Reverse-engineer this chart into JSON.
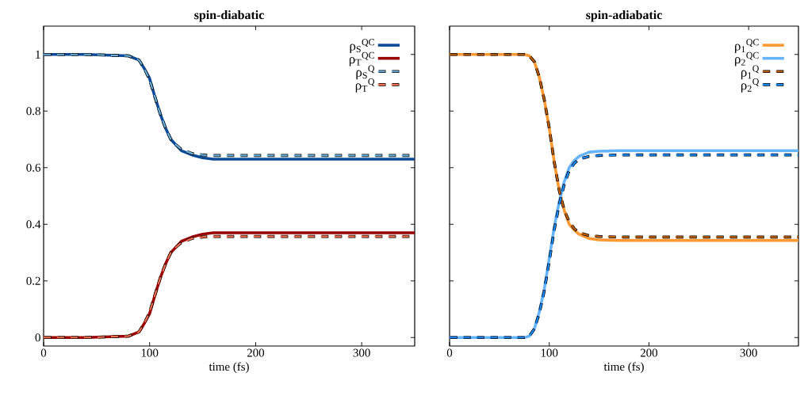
{
  "chart_data": [
    {
      "type": "line",
      "title": "spin-diabatic",
      "xlabel": "time (fs)",
      "xlim": [
        0,
        350
      ],
      "ylim": [
        -0.03,
        1.1
      ],
      "xticks": [
        0,
        100,
        200,
        300
      ],
      "yticks": [
        0,
        0.2,
        0.4,
        0.6,
        0.8,
        1
      ],
      "legend": "top right",
      "grid": false,
      "x": [
        0,
        40,
        80,
        90,
        95,
        100,
        105,
        110,
        115,
        120,
        125,
        130,
        140,
        150,
        160,
        180,
        200,
        250,
        300,
        350
      ],
      "series": [
        {
          "name": "ρ$_{S}$$^{QC}$",
          "color": "#0c4a96",
          "line_style": "solid",
          "values": [
            1,
            1,
            0.995,
            0.98,
            0.95,
            0.915,
            0.85,
            0.79,
            0.74,
            0.7,
            0.68,
            0.66,
            0.645,
            0.635,
            0.63,
            0.63,
            0.63,
            0.63,
            0.63,
            0.63
          ]
        },
        {
          "name": "ρ$_{T}$$^{QC}$",
          "color": "#990000",
          "line_style": "solid",
          "values": [
            0,
            0,
            0.005,
            0.02,
            0.05,
            0.085,
            0.15,
            0.21,
            0.26,
            0.3,
            0.32,
            0.34,
            0.355,
            0.365,
            0.37,
            0.37,
            0.37,
            0.37,
            0.37,
            0.37
          ]
        },
        {
          "name": "ρ$_{S}$$^{Q}$",
          "color": "#6baed6",
          "line_style": "dashed",
          "values": [
            1,
            1,
            0.995,
            0.98,
            0.95,
            0.91,
            0.85,
            0.79,
            0.74,
            0.7,
            0.68,
            0.665,
            0.65,
            0.645,
            0.643,
            0.643,
            0.643,
            0.643,
            0.643,
            0.643
          ]
        },
        {
          "name": "ρ$_{T}$$^{Q}$",
          "color": "#f46d4e",
          "line_style": "dashed",
          "values": [
            0,
            0,
            0.005,
            0.02,
            0.05,
            0.09,
            0.15,
            0.21,
            0.26,
            0.3,
            0.32,
            0.335,
            0.35,
            0.355,
            0.357,
            0.357,
            0.357,
            0.357,
            0.357,
            0.357
          ]
        }
      ]
    },
    {
      "type": "line",
      "title": "spin-adiabatic",
      "xlabel": "time (fs)",
      "xlim": [
        0,
        350
      ],
      "ylim": [
        -0.03,
        1.1
      ],
      "xticks": [
        0,
        100,
        200,
        300
      ],
      "yticks": [
        0,
        0.2,
        0.4,
        0.6,
        0.8,
        1
      ],
      "legend": "top right",
      "grid": false,
      "tick_labels": "x",
      "x": [
        0,
        40,
        75,
        80,
        85,
        90,
        95,
        100,
        105,
        110,
        115,
        120,
        125,
        130,
        140,
        150,
        170,
        200,
        250,
        300,
        350
      ],
      "series": [
        {
          "name": "ρ$_{1}$$^{QC}$",
          "color": "#ff9933",
          "line_style": "solid",
          "values": [
            1,
            1,
            1,
            0.995,
            0.975,
            0.92,
            0.84,
            0.74,
            0.62,
            0.52,
            0.45,
            0.4,
            0.38,
            0.365,
            0.35,
            0.345,
            0.343,
            0.343,
            0.343,
            0.343,
            0.343
          ]
        },
        {
          "name": "ρ$_{2}$$^{QC}$",
          "color": "#66b3ff",
          "line_style": "solid",
          "values": [
            0,
            0,
            0,
            0.005,
            0.03,
            0.09,
            0.17,
            0.28,
            0.39,
            0.48,
            0.55,
            0.6,
            0.625,
            0.64,
            0.655,
            0.658,
            0.66,
            0.66,
            0.66,
            0.66,
            0.66
          ]
        },
        {
          "name": "ρ$_{1}$$^{Q}$",
          "color": "#c0600a",
          "line_style": "dashed",
          "values": [
            1,
            1,
            1,
            0.995,
            0.975,
            0.92,
            0.84,
            0.74,
            0.62,
            0.52,
            0.45,
            0.41,
            0.385,
            0.37,
            0.36,
            0.357,
            0.355,
            0.355,
            0.355,
            0.355,
            0.355
          ]
        },
        {
          "name": "ρ$_{2}$$^{Q}$",
          "color": "#1a8cff",
          "line_style": "dashed",
          "values": [
            0,
            0,
            0,
            0.005,
            0.03,
            0.085,
            0.165,
            0.27,
            0.38,
            0.47,
            0.54,
            0.59,
            0.615,
            0.63,
            0.64,
            0.643,
            0.645,
            0.645,
            0.645,
            0.645,
            0.645
          ]
        }
      ]
    }
  ]
}
